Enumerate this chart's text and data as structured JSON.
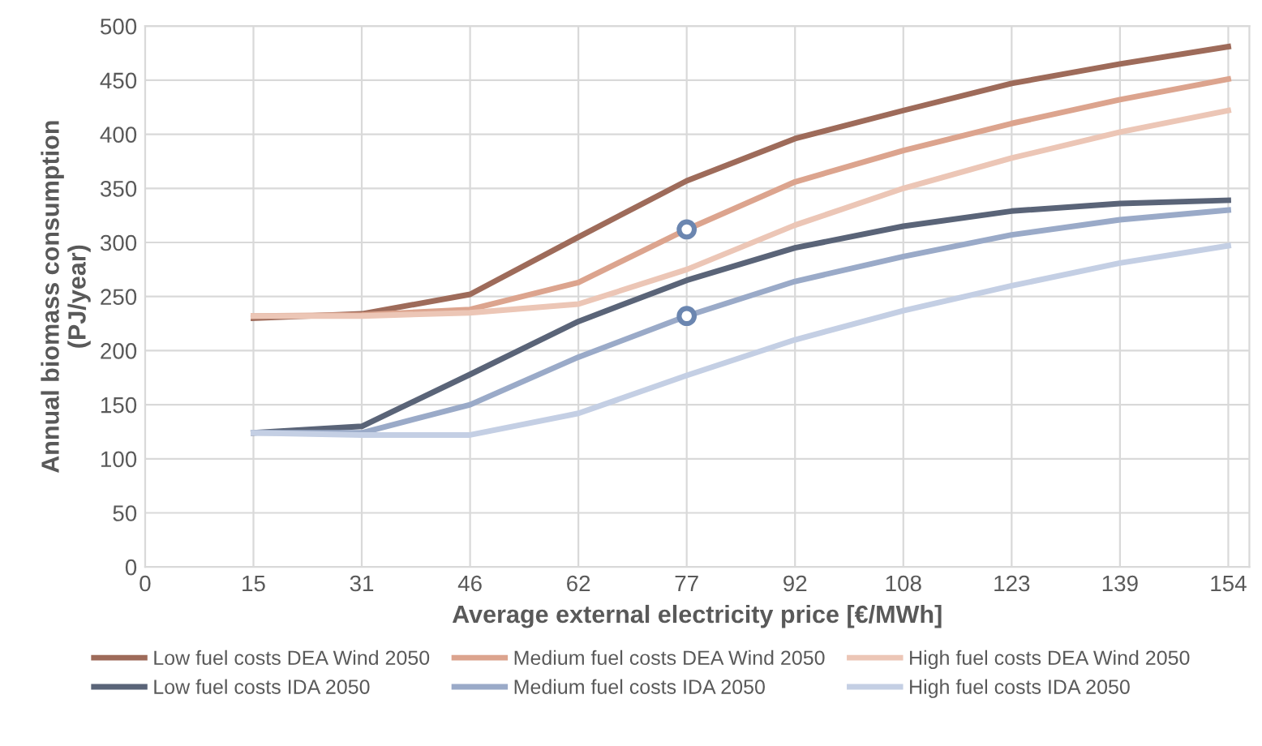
{
  "chart_data": {
    "type": "line",
    "xlabel": "Average external electricity price [€/MWh]",
    "ylabel": "Annual biomass consumption\n(PJ/year)",
    "x": [
      15.4,
      30.8,
      46.2,
      61.6,
      77,
      92.4,
      107.8,
      123.2,
      138.6,
      154
    ],
    "series": [
      {
        "name": "Low fuel costs DEA Wind 2050",
        "color": "#9e6b5a",
        "values": [
          230,
          234,
          252,
          305,
          357,
          396,
          422,
          447,
          465,
          481
        ]
      },
      {
        "name": "Medium fuel costs DEA Wind 2050",
        "color": "#dca48e",
        "values": [
          232,
          233,
          238,
          263,
          312,
          356,
          385,
          410,
          432,
          451
        ]
      },
      {
        "name": "High fuel costs DEA Wind 2050",
        "color": "#ecc6b6",
        "values": [
          232,
          232,
          235,
          243,
          275,
          316,
          350,
          378,
          402,
          422
        ]
      },
      {
        "name": "Low fuel costs IDA 2050",
        "color": "#5a6478",
        "values": [
          124,
          130,
          178,
          227,
          265,
          295,
          315,
          329,
          336,
          339
        ]
      },
      {
        "name": "Medium fuel costs IDA 2050",
        "color": "#9aaac8",
        "values": [
          124,
          124,
          150,
          194,
          232,
          264,
          287,
          307,
          321,
          330
        ]
      },
      {
        "name": "High fuel costs IDA 2050",
        "color": "#c4cfe4",
        "values": [
          124,
          122,
          122,
          142,
          177,
          210,
          237,
          260,
          281,
          297
        ]
      },
      {
        "type": "scatter",
        "color": "#6b86b0",
        "x": [
          77,
          77
        ],
        "values": [
          312,
          232
        ],
        "marker": "circle"
      }
    ],
    "xlim": [
      0,
      157
    ],
    "ylim": [
      0,
      500
    ],
    "xticks": [
      0,
      {
        "value": 15.4,
        "label": "15"
      },
      {
        "value": 30.8,
        "label": "31"
      },
      {
        "value": 46.2,
        "label": "46"
      },
      {
        "value": 61.6,
        "label": "62"
      },
      77,
      {
        "value": 92.4,
        "label": "92"
      },
      {
        "value": 107.8,
        "label": "108"
      },
      {
        "value": 123.2,
        "label": "123"
      },
      {
        "value": 138.6,
        "label": "139"
      },
      154
    ],
    "yticks": [
      0,
      50,
      100,
      150,
      200,
      250,
      300,
      350,
      400,
      450,
      500
    ],
    "grid": true,
    "legend": "bottom",
    "marker": "none",
    "line_style": "solid"
  }
}
